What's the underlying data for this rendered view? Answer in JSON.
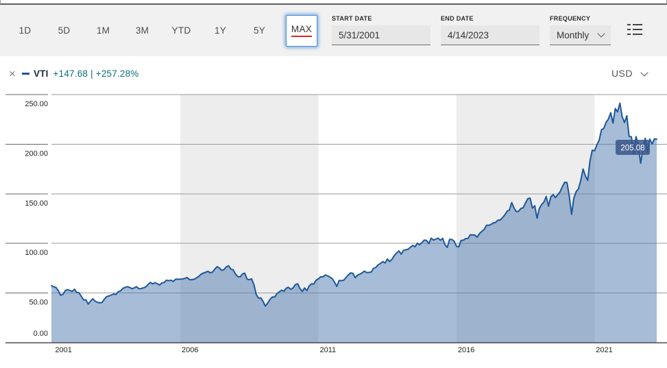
{
  "toolbar": {
    "ranges": [
      "1D",
      "5D",
      "1M",
      "3M",
      "YTD",
      "1Y",
      "5Y",
      "MAX"
    ],
    "selected_range": "MAX",
    "start_date": {
      "label": "START DATE",
      "value": "5/31/2001"
    },
    "end_date": {
      "label": "END DATE",
      "value": "4/14/2023"
    },
    "frequency": {
      "label": "FREQUENCY",
      "value": "Monthly"
    }
  },
  "legend": {
    "symbol": "VTI",
    "change": "+147.68 | +257.28%",
    "currency": "USD"
  },
  "colors": {
    "line": "#1c5799",
    "fill": "rgba(77,122,176,0.5)",
    "band": "#ededed",
    "grid": "#9a9a9a",
    "stub": "#666666",
    "axis": "#4d4d4d",
    "tick_text": "#222222",
    "tag_bg": "rgba(56,86,138,0.85)",
    "tag_text": "#ffffff",
    "symbol_text": "#222c3d",
    "change_text": "#0b6e7b",
    "swatch": "#1c5799"
  },
  "chart_data": {
    "type": "area",
    "title": "VTI price history (MAX range)",
    "frequency": "monthly",
    "start_month": "2001-05",
    "end_month": "2023-04",
    "ylim": [
      0,
      250
    ],
    "grid": true,
    "last_price_label": "205.08",
    "y_ticks": [
      {
        "label": "0.00",
        "value": 0
      },
      {
        "label": "50.00",
        "value": 50
      },
      {
        "label": "100.00",
        "value": 100
      },
      {
        "label": "150.00",
        "value": 150
      },
      {
        "label": "200.00",
        "value": 200
      },
      {
        "label": "250.00",
        "value": 250
      }
    ],
    "x_ticks": [
      {
        "label": "2001",
        "index": 1
      },
      {
        "label": "2006",
        "index": 56
      },
      {
        "label": "2011",
        "index": 116
      },
      {
        "label": "2016",
        "index": 176
      },
      {
        "label": "2021",
        "index": 236
      }
    ],
    "shaded_band_index_ranges": [
      [
        56,
        116
      ],
      [
        176,
        236
      ]
    ],
    "values": [
      57.4,
      56.2,
      55.6,
      52.3,
      47.7,
      48.7,
      52.4,
      53.4,
      52.6,
      51.6,
      53.8,
      50.7,
      50.3,
      46.7,
      43.0,
      43.2,
      38.8,
      41.9,
      44.3,
      41.8,
      40.7,
      40.1,
      40.5,
      43.8,
      46.4,
      47.0,
      48.0,
      49.0,
      48.5,
      51.4,
      52.1,
      54.6,
      55.7,
      56.4,
      55.6,
      54.4,
      55.2,
      56.4,
      54.4,
      54.5,
      55.3,
      56.2,
      58.7,
      60.7,
      59.2,
      60.5,
      59.4,
      58.1,
      60.2,
      60.7,
      63.0,
      62.4,
      62.9,
      61.7,
      64.0,
      63.9,
      64.0,
      64.1,
      64.8,
      65.6,
      63.5,
      63.5,
      63.9,
      65.2,
      66.8,
      68.9,
      70.1,
      70.9,
      71.9,
      70.4,
      71.1,
      74.1,
      76.6,
      75.2,
      72.8,
      73.7,
      76.4,
      77.5,
      74.1,
      73.4,
      69.0,
      66.6,
      66.2,
      69.3,
      70.0,
      64.0,
      63.4,
      64.2,
      58.3,
      48.5,
      44.8,
      45.2,
      41.3,
      36.8,
      39.9,
      43.7,
      46.0,
      46.0,
      49.4,
      51.1,
      52.9,
      51.8,
      54.8,
      55.8,
      53.7,
      55.2,
      58.5,
      59.4,
      54.5,
      51.6,
      55.1,
      52.5,
      57.1,
      59.2,
      59.1,
      62.9,
      64.3,
      66.4,
      66.3,
      68.2,
      67.3,
      66.1,
      64.6,
      61.0,
      56.6,
      62.7,
      62.4,
      62.9,
      65.6,
      68.3,
      70.4,
      69.9,
      65.5,
      68.1,
      69.0,
      70.4,
      72.1,
      70.6,
      70.8,
      71.3,
      74.9,
      75.8,
      78.5,
      79.9,
      81.6,
      80.3,
      84.3,
      81.7,
      84.1,
      87.9,
      90.3,
      92.4,
      89.2,
      93.0,
      93.6,
      94.2,
      96.2,
      98.0,
      96.6,
      100.2,
      98.6,
      100.9,
      103.4,
      103.0,
      99.8,
      105.3,
      103.4,
      104.3,
      105.4,
      103.2,
      105.2,
      98.6,
      96.0,
      104.0,
      104.0,
      102.2,
      97.0,
      96.6,
      103.0,
      103.3,
      104.9,
      105.0,
      108.7,
      108.6,
      108.4,
      106.3,
      110.0,
      112.0,
      114.0,
      118.2,
      118.2,
      119.2,
      120.6,
      121.2,
      123.5,
      123.6,
      126.0,
      128.8,
      132.4,
      133.7,
      141.2,
      135.7,
      132.1,
      132.4,
      135.3,
      135.9,
      140.8,
      145.1,
      145.7,
      135.6,
      138.0,
      125.4,
      135.2,
      139.2,
      141.7,
      147.3,
      137.6,
      147.1,
      149.0,
      146.3,
      148.9,
      151.9,
      157.1,
      161.6,
      161.3,
      147.7,
      129.3,
      145.6,
      152.2,
      155.0,
      163.6,
      175.0,
      168.2,
      163.5,
      183.0,
      194.0,
      193.3,
      199.4,
      204.2,
      214.6,
      215.9,
      222.0,
      225.3,
      231.7,
      221.3,
      236.0,
      232.5,
      241.4,
      227.6,
      221.8,
      228.6,
      207.9,
      207.4,
      190.0,
      207.7,
      199.4,
      180.7,
      195.4,
      205.9,
      192.2,
      205.1,
      200.2,
      205.3,
      205.08
    ]
  }
}
